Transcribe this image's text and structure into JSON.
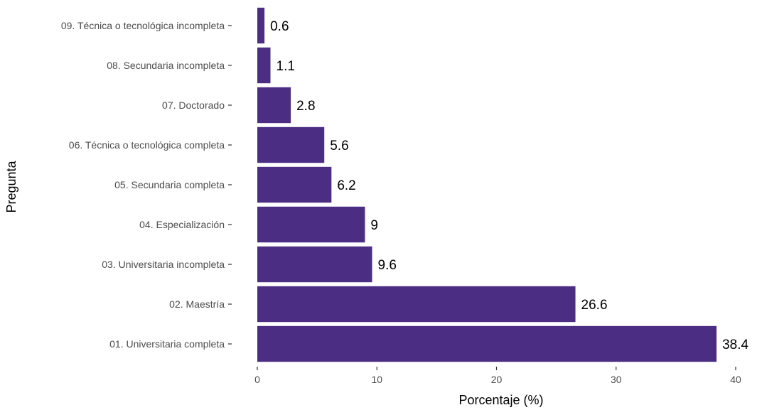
{
  "chart_data": {
    "type": "bar",
    "orientation": "horizontal",
    "categories": [
      "09. Técnica o tecnológica incompleta",
      "08. Secundaria incompleta",
      "07. Doctorado",
      "06. Técnica o tecnológica completa",
      "05. Secundaria completa",
      "04. Especialización",
      "03. Universitaria incompleta",
      "02. Maestría",
      "01. Universitaria completa"
    ],
    "values": [
      0.6,
      1.1,
      2.8,
      5.6,
      6.2,
      9,
      9.6,
      26.6,
      38.4
    ],
    "data_labels": [
      "0.6",
      "1.1",
      "2.8",
      "5.6",
      "6.2",
      "9",
      "9.6",
      "26.6",
      "38.4"
    ],
    "xlabel": "Porcentaje (%)",
    "ylabel": "Pregunta",
    "xlim": [
      0,
      40
    ],
    "x_ticks": [
      0,
      10,
      20,
      30,
      40
    ],
    "x_tick_labels": [
      "0",
      "10",
      "20",
      "30",
      "40"
    ],
    "grid": false,
    "legend": "none",
    "bar_color": "#4b2e83"
  }
}
